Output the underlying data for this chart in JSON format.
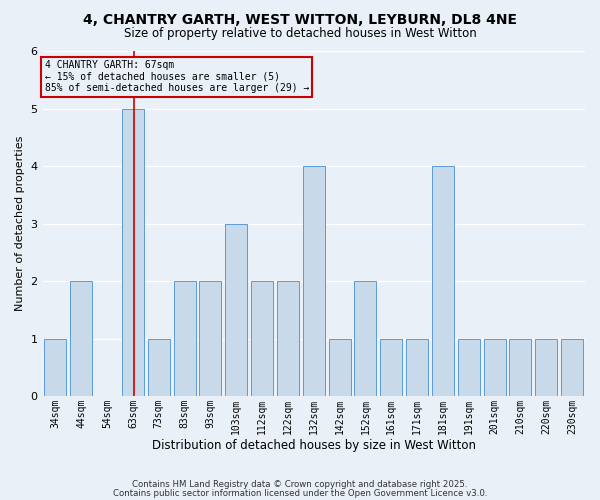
{
  "title1": "4, CHANTRY GARTH, WEST WITTON, LEYBURN, DL8 4NE",
  "title2": "Size of property relative to detached houses in West Witton",
  "xlabel": "Distribution of detached houses by size in West Witton",
  "ylabel": "Number of detached properties",
  "categories": [
    "34sqm",
    "44sqm",
    "54sqm",
    "63sqm",
    "73sqm",
    "83sqm",
    "93sqm",
    "103sqm",
    "112sqm",
    "122sqm",
    "132sqm",
    "142sqm",
    "152sqm",
    "161sqm",
    "171sqm",
    "181sqm",
    "191sqm",
    "201sqm",
    "210sqm",
    "220sqm",
    "230sqm"
  ],
  "values": [
    1,
    2,
    0,
    5,
    1,
    2,
    2,
    3,
    2,
    2,
    4,
    1,
    2,
    1,
    1,
    4,
    1,
    1,
    1,
    1,
    1
  ],
  "highlight_index": 3,
  "bar_color": "#c8daea",
  "bar_edge_color": "#5b9bd5",
  "red_line_color": "#cc0000",
  "annotation_text": "4 CHANTRY GARTH: 67sqm\n← 15% of detached houses are smaller (5)\n85% of semi-detached houses are larger (29) →",
  "annotation_box_edge": "#cc0000",
  "footer1": "Contains HM Land Registry data © Crown copyright and database right 2025.",
  "footer2": "Contains public sector information licensed under the Open Government Licence v3.0.",
  "ylim": [
    0,
    6
  ],
  "yticks": [
    0,
    1,
    2,
    3,
    4,
    5,
    6
  ],
  "bg_color": "#eaf0f7",
  "grid_color": "#ffffff"
}
